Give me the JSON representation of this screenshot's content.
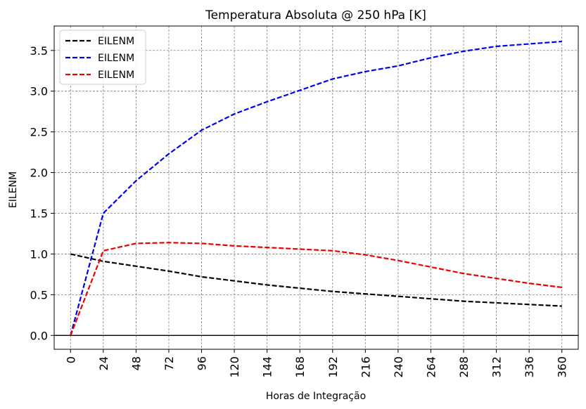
{
  "chart_data": {
    "type": "line",
    "title": "Temperatura Absoluta @ 250 hPa [K]",
    "xlabel": "Horas de Integração",
    "ylabel": "EILENM",
    "x": [
      0,
      24,
      48,
      72,
      96,
      120,
      144,
      168,
      192,
      216,
      240,
      264,
      288,
      312,
      336,
      360
    ],
    "xticks": [
      "0",
      "24",
      "48",
      "72",
      "96",
      "120",
      "144",
      "168",
      "192",
      "216",
      "240",
      "264",
      "288",
      "312",
      "336",
      "360"
    ],
    "yticks": [
      "0.0",
      "0.5",
      "1.0",
      "1.5",
      "2.0",
      "2.5",
      "3.0",
      "3.5"
    ],
    "ytick_values": [
      0.0,
      0.5,
      1.0,
      1.5,
      2.0,
      2.5,
      3.0,
      3.5
    ],
    "xlim": [
      -12,
      372
    ],
    "ylim": [
      -0.17,
      3.8
    ],
    "grid": true,
    "legend_position": "upper-left",
    "series": [
      {
        "name": "EILENM",
        "color": "#000000",
        "values": [
          1.0,
          0.91,
          0.85,
          0.79,
          0.72,
          0.67,
          0.62,
          0.58,
          0.54,
          0.51,
          0.48,
          0.45,
          0.42,
          0.4,
          0.38,
          0.36
        ]
      },
      {
        "name": "EILENM",
        "color": "#0000ee",
        "values": [
          0.0,
          1.5,
          1.9,
          2.23,
          2.52,
          2.72,
          2.87,
          3.01,
          3.15,
          3.24,
          3.31,
          3.41,
          3.49,
          3.55,
          3.58,
          3.61
        ]
      },
      {
        "name": "EILENM",
        "color": "#ee0000",
        "values": [
          0.0,
          1.04,
          1.13,
          1.14,
          1.13,
          1.1,
          1.08,
          1.06,
          1.04,
          0.99,
          0.92,
          0.84,
          0.76,
          0.7,
          0.64,
          0.59
        ]
      }
    ]
  }
}
